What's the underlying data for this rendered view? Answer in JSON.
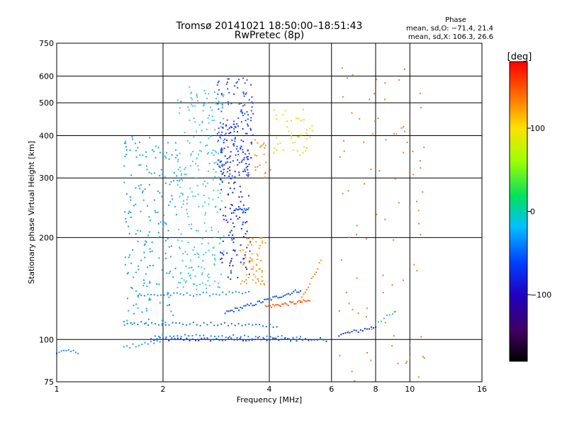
{
  "chart_data": {
    "type": "scatter",
    "title_line1": "Tromsø 20141021 18:50:00–18:51:43",
    "title_line2": "RwPretec (8p)",
    "xlabel": "Frequency [MHz]",
    "ylabel": "Stationary phase Virtual Height [km]",
    "x_scale": "log",
    "y_scale": "log",
    "xlim": [
      1,
      16
    ],
    "ylim": [
      75,
      750
    ],
    "x_ticks": [
      1,
      2,
      4,
      6,
      8,
      10,
      16
    ],
    "x_tick_labels": [
      "1",
      "2",
      "4",
      "6",
      "8",
      "10",
      "16"
    ],
    "y_ticks": [
      75,
      100,
      200,
      300,
      400,
      500,
      600,
      750
    ],
    "y_tick_labels": [
      "75",
      "100",
      "200",
      "300",
      "400",
      "500",
      "600",
      "750"
    ],
    "grid": true,
    "stats": {
      "heading": "Phase",
      "line1": "mean, sd,O: −71.4, 21.4",
      "line2": "mean, sd,X: 106.3, 26.6"
    },
    "colorbar": {
      "label": "[deg]",
      "range": [
        -180,
        180
      ],
      "tick_values": [
        100,
        0,
        -100
      ],
      "tick_labels": [
        "100",
        "0",
        "−100"
      ]
    },
    "point_groups": [
      {
        "kind": "trace",
        "x0": 1.85,
        "x1": 5.8,
        "y0": 100,
        "y1": 100,
        "color": "#1040e0",
        "n": 60
      },
      {
        "kind": "trace",
        "x0": 1.9,
        "x1": 4.9,
        "y0": 103,
        "y1": 101,
        "color": "#2080e0",
        "n": 40
      },
      {
        "kind": "trace",
        "x0": 1.55,
        "x1": 2.0,
        "y0": 95,
        "y1": 99,
        "color": "#20a0e8",
        "n": 14
      },
      {
        "kind": "trace",
        "x0": 1.0,
        "x1": 1.15,
        "y0": 92,
        "y1": 92,
        "color": "#2090e0",
        "n": 10
      },
      {
        "kind": "trace",
        "x0": 6.3,
        "x1": 8.0,
        "y0": 103,
        "y1": 109,
        "color": "#1030d0",
        "n": 18
      },
      {
        "kind": "trace",
        "x0": 8.0,
        "x1": 9.1,
        "y0": 112,
        "y1": 120,
        "color": "#40c0b0",
        "n": 8
      },
      {
        "kind": "trace",
        "x0": 1.55,
        "x1": 4.2,
        "y0": 112,
        "y1": 110,
        "color": "#2070e0",
        "n": 45
      },
      {
        "kind": "trace",
        "x0": 1.7,
        "x1": 3.5,
        "y0": 135,
        "y1": 137,
        "color": "#2090e0",
        "n": 35
      },
      {
        "kind": "trace",
        "x0": 3.0,
        "x1": 4.9,
        "y0": 120,
        "y1": 140,
        "color": "#1050d8",
        "n": 45
      },
      {
        "kind": "trace",
        "x0": 3.9,
        "x1": 5.2,
        "y0": 125,
        "y1": 130,
        "color": "#f06010",
        "n": 30
      },
      {
        "kind": "trace",
        "x0": 4.9,
        "x1": 5.6,
        "y0": 130,
        "y1": 170,
        "color": "#f09020",
        "n": 14
      },
      {
        "kind": "trace",
        "x0": 3.2,
        "x1": 3.5,
        "y0": 240,
        "y1": 242,
        "color": "#2060e0",
        "n": 14
      },
      {
        "kind": "cloud",
        "x0": 1.55,
        "x1": 2.2,
        "y0": 110,
        "y1": 400,
        "color": "#20a0e8",
        "n": 200
      },
      {
        "kind": "cloud",
        "x0": 2.2,
        "x1": 3.0,
        "y0": 140,
        "y1": 560,
        "color": "#40c8e8",
        "n": 260
      },
      {
        "kind": "cloud",
        "x0": 2.9,
        "x1": 3.55,
        "y0": 150,
        "y1": 430,
        "color": "#2030d0",
        "n": 160
      },
      {
        "kind": "cloud",
        "x0": 2.85,
        "x1": 3.6,
        "y0": 300,
        "y1": 600,
        "color": "#3050e0",
        "n": 140
      },
      {
        "kind": "cloud",
        "x0": 3.3,
        "x1": 3.9,
        "y0": 145,
        "y1": 200,
        "color": "#f0a020",
        "n": 60
      },
      {
        "kind": "cloud",
        "x0": 3.6,
        "x1": 4.1,
        "y0": 300,
        "y1": 400,
        "color": "#f09020",
        "n": 20
      },
      {
        "kind": "cloud",
        "x0": 4.1,
        "x1": 5.3,
        "y0": 350,
        "y1": 480,
        "color": "#e0e020",
        "n": 45
      },
      {
        "kind": "cloud",
        "x0": 6.3,
        "x1": 11,
        "y0": 75,
        "y1": 650,
        "color": "#e08040",
        "n": 90
      }
    ]
  }
}
